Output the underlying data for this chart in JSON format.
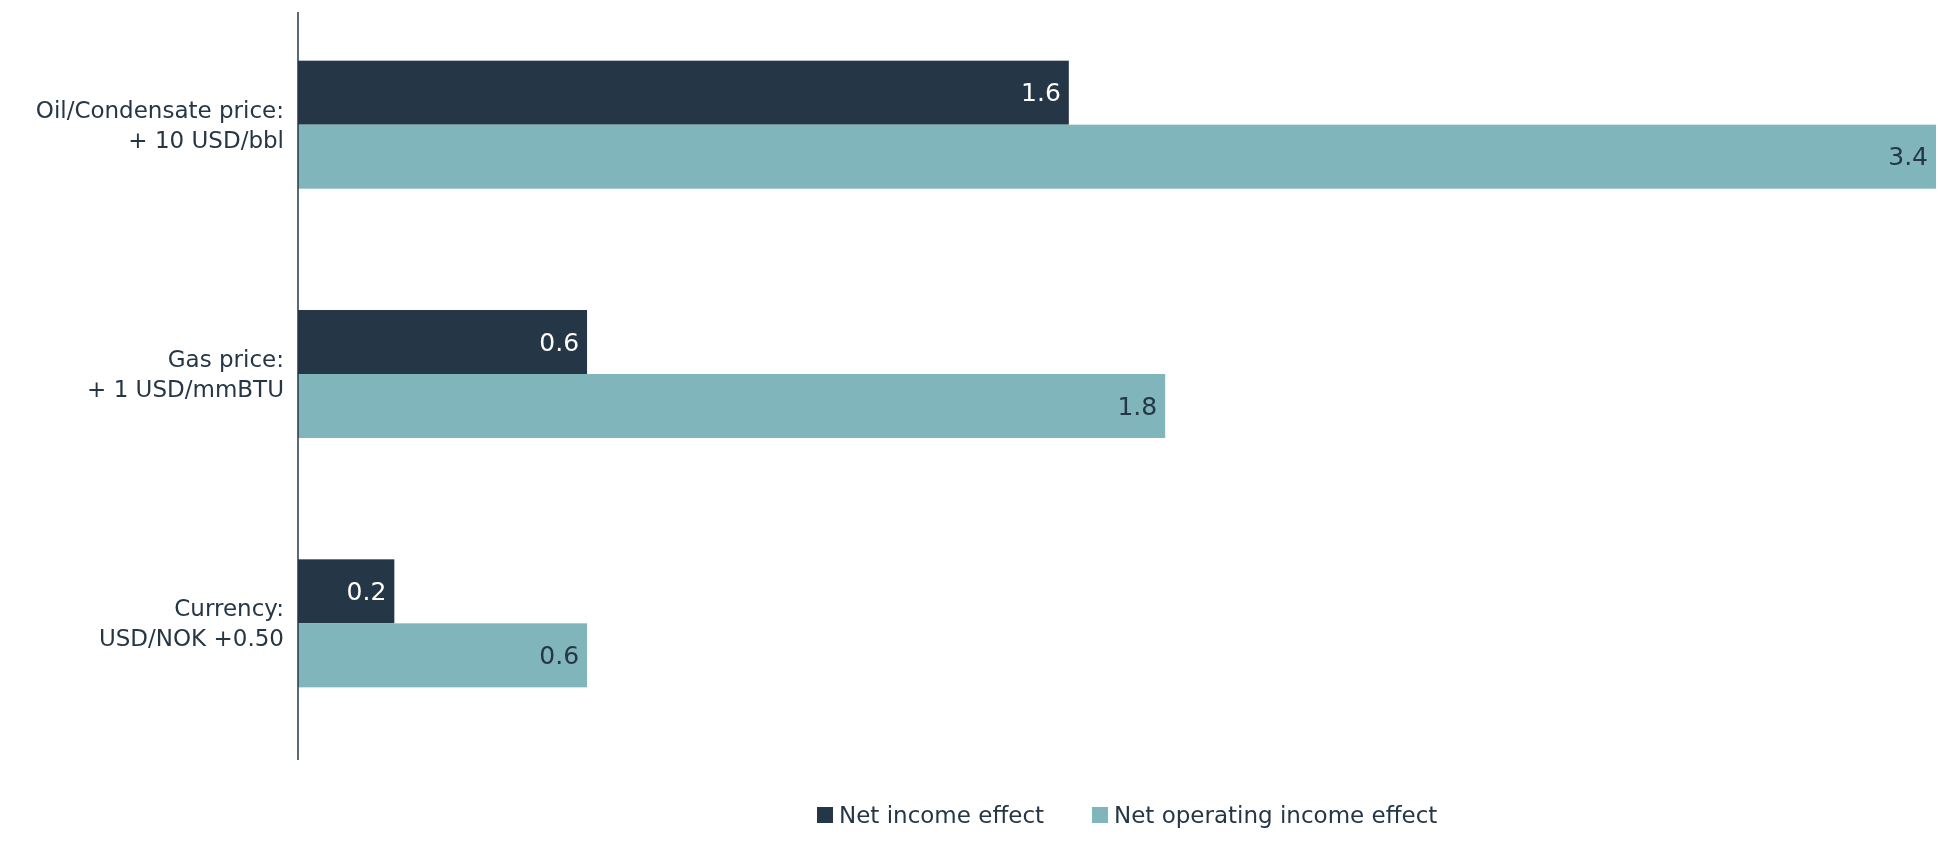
{
  "chart_data": {
    "type": "bar",
    "orientation": "horizontal",
    "categories": [
      "Oil/Condensate price:\n+ 10 USD/bbl",
      "Gas price:\n+ 1 USD/mmBTU",
      "Currency:\nUSD/NOK +0.50"
    ],
    "series": [
      {
        "name": "Net income effect",
        "color": "#253746",
        "values": [
          1.6,
          0.6,
          0.2
        ]
      },
      {
        "name": "Net operating income effect",
        "color": "#7fb5bb",
        "values": [
          3.4,
          1.8,
          0.6
        ]
      }
    ],
    "data_labels": true,
    "legend": "bottom"
  }
}
